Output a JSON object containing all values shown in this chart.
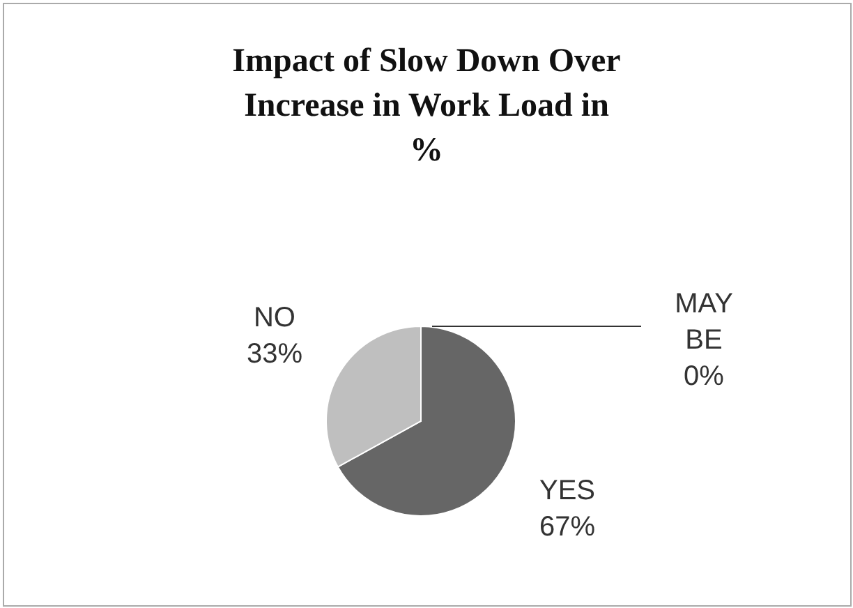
{
  "chart_data": {
    "type": "pie",
    "title": "Impact of Slow Down Over Increase in Work Load in %",
    "categories": [
      "YES",
      "NO",
      "MAY BE"
    ],
    "values": [
      67,
      33,
      0
    ],
    "colors": [
      "#666666",
      "#bfbfbf",
      "#999999"
    ],
    "value_labels": [
      "67%",
      "33%",
      "0%"
    ],
    "legend": false
  }
}
